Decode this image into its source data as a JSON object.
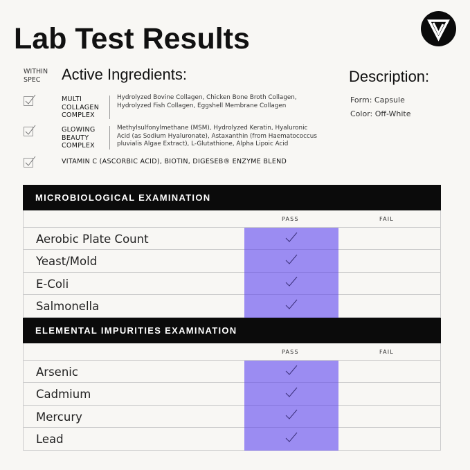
{
  "title": "Lab Test Results",
  "within_spec": [
    "WITHIN",
    "SPEC"
  ],
  "active_ingredients": {
    "title": "Active Ingredients:",
    "items": [
      {
        "name": [
          "MULTI",
          "COLLAGEN",
          "COMPLEX"
        ],
        "list": [
          "Hydrolyzed Bovine Collagen, Chicken Bone Broth Collagen,",
          "Hydrolyzed Fish Collagen, Eggshell Membrane Collagen"
        ]
      },
      {
        "name": [
          "GLOWING",
          "BEAUTY",
          "COMPLEX"
        ],
        "list": [
          "Methylsulfonylmethane (MSM), Hydrolyzed Keratin, Hyaluronic",
          "Acid (as Sodium Hyaluronate), Astaxanthin (from Haematococcus",
          "pluvialis Algae Extract), L-Glutathione, Alpha Lipoic Acid"
        ]
      },
      {
        "name": [
          "VITAMIN C (ASCORBIC ACID), BIOTIN, DIGESEB® ENZYME BLEND"
        ],
        "list": []
      }
    ]
  },
  "description": {
    "title": "Description:",
    "form": "Form: Capsule",
    "color": "Color: Off-White"
  },
  "tables": [
    {
      "title": "MICROBIOLOGICAL EXAMINATION",
      "pass_label": "PASS",
      "fail_label": "FAIL",
      "rows": [
        {
          "label": "Aerobic Plate Count",
          "result": "pass"
        },
        {
          "label": "Yeast/Mold",
          "result": "pass"
        },
        {
          "label": "E-Coli",
          "result": "pass"
        },
        {
          "label": "Salmonella",
          "result": "pass"
        }
      ]
    },
    {
      "title": "ELEMENTAL IMPURITIES EXAMINATION",
      "pass_label": "PASS",
      "fail_label": "FAIL",
      "rows": [
        {
          "label": "Arsenic",
          "result": "pass"
        },
        {
          "label": "Cadmium",
          "result": "pass"
        },
        {
          "label": "Mercury",
          "result": "pass"
        },
        {
          "label": "Lead",
          "result": "pass"
        }
      ]
    }
  ],
  "colors": {
    "pass": "#9b8cf2",
    "header": "#0b0b0b",
    "background": "#f8f7f4"
  }
}
